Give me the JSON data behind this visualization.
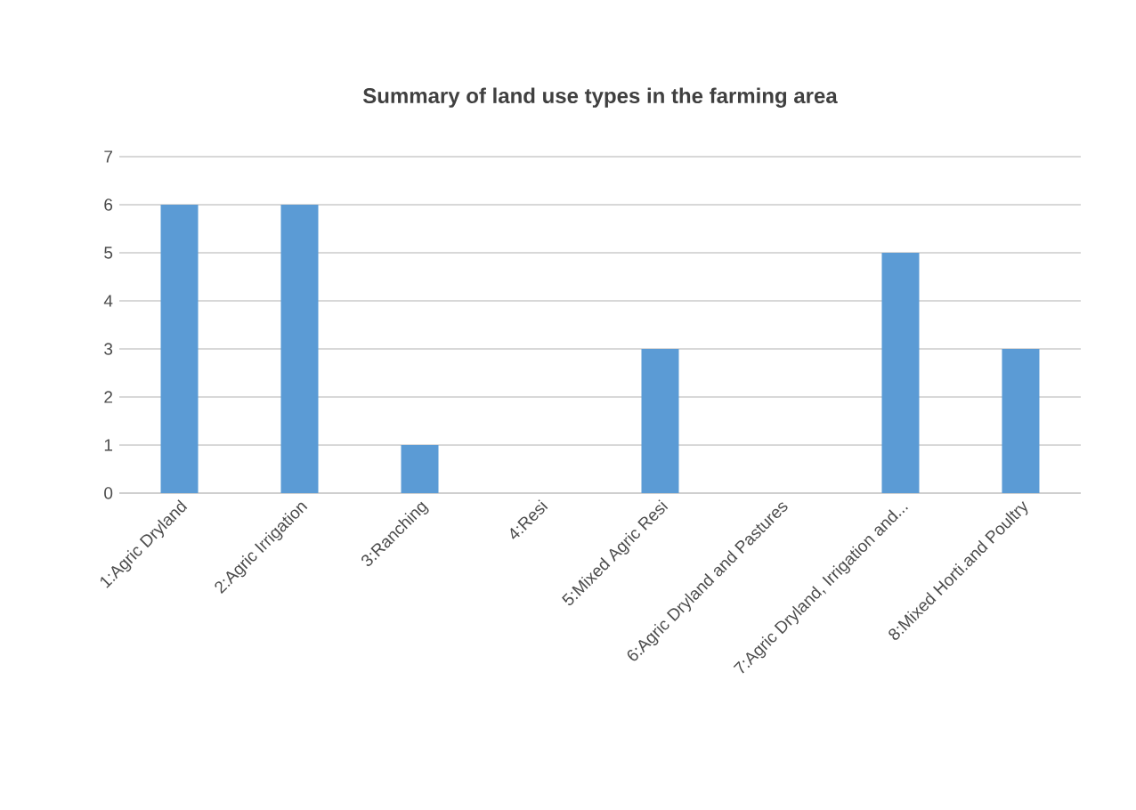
{
  "chart_data": {
    "type": "bar",
    "title": "Summary of land use types in the farming area",
    "categories": [
      "1:Agric Dryland",
      "2:Agric Irrigation",
      "3:Ranching",
      "4:Resi",
      "5:Mixed Agric Resi",
      "6:Agric Dryland and Pastures",
      "7:Agric Dryland, Irrigation and...",
      "8:Mixed Horti.and Poultry"
    ],
    "values": [
      6,
      6,
      1,
      0,
      3,
      0,
      5,
      3
    ],
    "color": "#5b9bd5",
    "ylim": [
      0,
      7
    ],
    "yticks": [
      0,
      1,
      2,
      3,
      4,
      5,
      6,
      7
    ],
    "grid": "y"
  }
}
